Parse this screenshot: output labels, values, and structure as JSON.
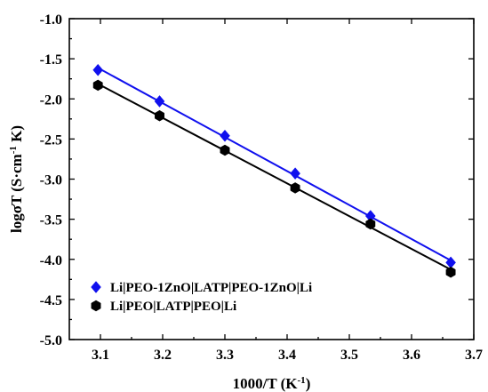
{
  "chart_data": {
    "type": "scatter",
    "title": "",
    "xlabel": "1000/T (K",
    "xlabel_sup": "-1",
    "xlabel_end": ")",
    "ylabel": "logσT (S·cm",
    "ylabel_sup": "-1",
    "ylabel_end": " K)",
    "xlim": [
      3.05,
      3.7
    ],
    "ylim": [
      -5.0,
      -1.0
    ],
    "xticks": [
      3.1,
      3.2,
      3.3,
      3.4,
      3.5,
      3.6,
      3.7
    ],
    "xtick_labels": [
      "3.1",
      "3.2",
      "3.3",
      "3.4",
      "3.5",
      "3.6",
      "3.7"
    ],
    "yticks": [
      -1.0,
      -1.5,
      -2.0,
      -2.5,
      -3.0,
      -3.5,
      -4.0,
      -4.5,
      -5.0
    ],
    "ytick_labels": [
      "-1.0",
      "-1.5",
      "-2.0",
      "-2.5",
      "-3.0",
      "-3.5",
      "-4.0",
      "-4.5",
      "-5.0"
    ],
    "grid": false,
    "legend_position": "bottom-left",
    "series": [
      {
        "name": "Li|PEO-1ZnO|LATP|PEO-1ZnO|Li",
        "color": "#1010ee",
        "marker": "diamond",
        "fit_line": true,
        "x": [
          3.096,
          3.195,
          3.3,
          3.413,
          3.534,
          3.663
        ],
        "y": [
          -1.64,
          -2.03,
          -2.46,
          -2.93,
          -3.46,
          -4.04
        ]
      },
      {
        "name": "Li|PEO|LATP|PEO|Li",
        "color": "#000000",
        "marker": "hexagon",
        "fit_line": true,
        "x": [
          3.096,
          3.195,
          3.3,
          3.413,
          3.534,
          3.663
        ],
        "y": [
          -1.83,
          -2.21,
          -2.64,
          -3.11,
          -3.56,
          -4.16
        ]
      }
    ]
  }
}
